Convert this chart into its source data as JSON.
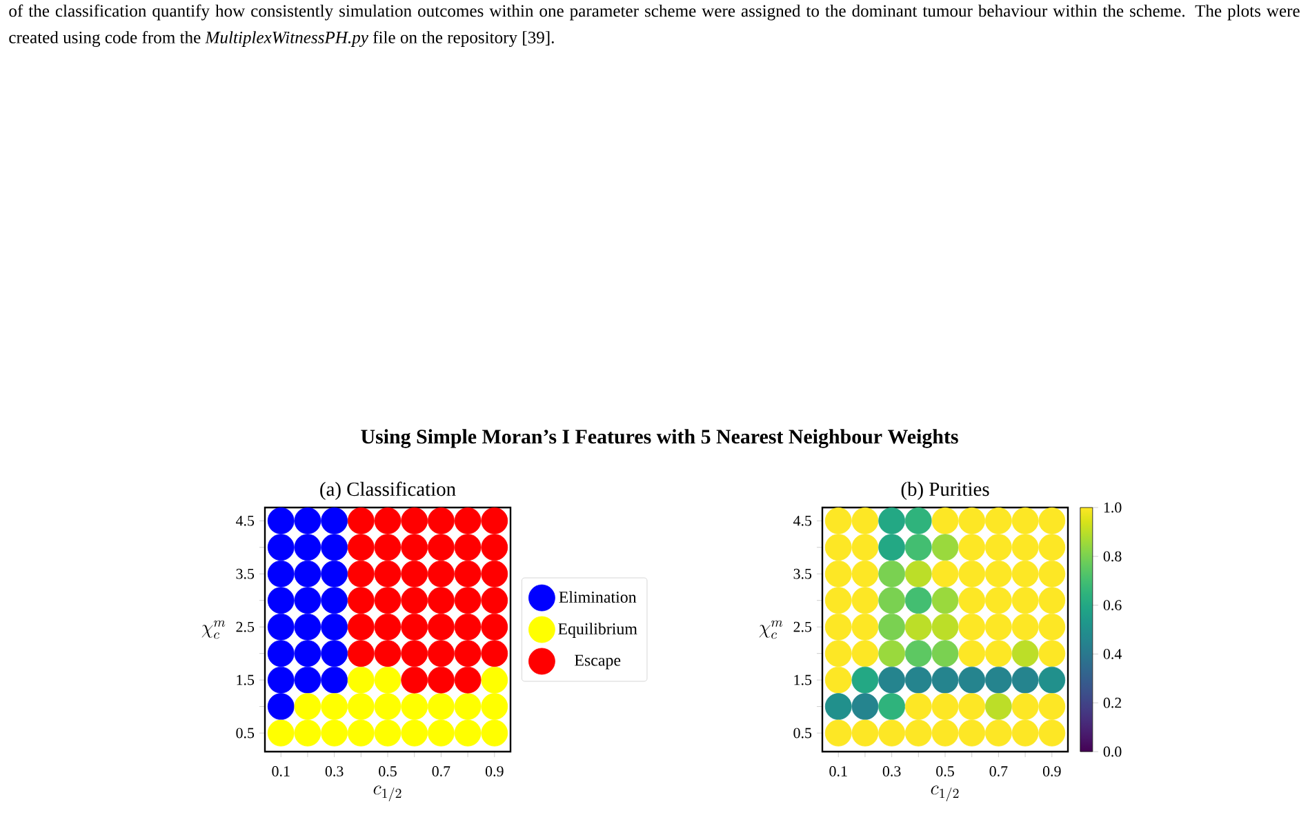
{
  "chart_data": [
    {
      "type": "scatter",
      "title": "(a) Classification",
      "xlabel": "c_{1/2}",
      "ylabel": "\\chi_c^m",
      "annotations": [
        "of the classification quantify how consistently simulation outcomes within one parameter scheme were assigned to the dominant tumour behaviour within the scheme. The plots were created using code from the *MultiplexWitnessPH.py* file on the repository [39].",
        "**Using Simple Moran’s I Features with 5 Nearest Neighbour Weights**"
      ],
      "xlim": [
        0.04,
        0.96
      ],
      "ylim": [
        0.15,
        4.75
      ],
      "xticks": [
        0.1,
        {
          "value": 0.2,
          "label": null
        },
        0.3,
        {
          "value": 0.4,
          "label": null
        },
        0.5,
        {
          "value": 0.6,
          "label": null
        },
        0.7,
        {
          "value": 0.8,
          "label": null
        },
        0.9
      ],
      "yticks": [
        0.5,
        {
          "value": 1.0,
          "label": null
        },
        1.5,
        {
          "value": 2.0,
          "label": null
        },
        2.5,
        {
          "value": 3.0,
          "label": null
        },
        3.5,
        {
          "value": 4.0,
          "label": null
        },
        4.5
      ],
      "marker": "circle",
      "legend": "right",
      "series": [
        {
          "name": "Elimination",
          "color": "#0000ff",
          "x": [
            0.1,
            0.2,
            0.3,
            0.1,
            0.2,
            0.3,
            0.1,
            0.2,
            0.3,
            0.1,
            0.2,
            0.3,
            0.1,
            0.2,
            0.3,
            0.1,
            0.2,
            0.3,
            0.1,
            0.2,
            0.3,
            0.1
          ],
          "values": [
            4.5,
            4.5,
            4.5,
            4.0,
            4.0,
            4.0,
            3.5,
            3.5,
            3.5,
            3.0,
            3.0,
            3.0,
            2.5,
            2.5,
            2.5,
            2.0,
            2.0,
            2.0,
            1.5,
            1.5,
            1.5,
            1.0
          ]
        },
        {
          "name": "Equilibrium",
          "color": "#ffff00",
          "x": [
            0.4,
            0.5,
            0.9,
            0.2,
            0.3,
            0.4,
            0.5,
            0.6,
            0.7,
            0.8,
            0.9,
            0.1,
            0.2,
            0.3,
            0.4,
            0.5,
            0.6,
            0.7,
            0.8,
            0.9
          ],
          "values": [
            1.5,
            1.5,
            1.5,
            1.0,
            1.0,
            1.0,
            1.0,
            1.0,
            1.0,
            1.0,
            1.0,
            0.5,
            0.5,
            0.5,
            0.5,
            0.5,
            0.5,
            0.5,
            0.5,
            0.5
          ]
        },
        {
          "name": "Escape",
          "color": "#ff0000",
          "x": [
            0.4,
            0.5,
            0.6,
            0.7,
            0.8,
            0.9,
            0.4,
            0.5,
            0.6,
            0.7,
            0.8,
            0.9,
            0.4,
            0.5,
            0.6,
            0.7,
            0.8,
            0.9,
            0.4,
            0.5,
            0.6,
            0.7,
            0.8,
            0.9,
            0.4,
            0.5,
            0.6,
            0.7,
            0.8,
            0.9,
            0.4,
            0.5,
            0.6,
            0.7,
            0.8,
            0.9,
            0.6,
            0.7,
            0.8
          ],
          "values": [
            4.5,
            4.5,
            4.5,
            4.5,
            4.5,
            4.5,
            4.0,
            4.0,
            4.0,
            4.0,
            4.0,
            4.0,
            3.5,
            3.5,
            3.5,
            3.5,
            3.5,
            3.5,
            3.0,
            3.0,
            3.0,
            3.0,
            3.0,
            3.0,
            2.5,
            2.5,
            2.5,
            2.5,
            2.5,
            2.5,
            2.0,
            2.0,
            2.0,
            2.0,
            2.0,
            2.0,
            1.5,
            1.5,
            1.5
          ]
        }
      ]
    },
    {
      "type": "scatter",
      "title": "(b) Purities",
      "xlabel": "c_{1/2}",
      "ylabel": "\\chi_c^m",
      "xlim": [
        0.04,
        0.96
      ],
      "ylim": [
        0.15,
        4.75
      ],
      "xticks": [
        0.1,
        {
          "value": 0.2,
          "label": null
        },
        0.3,
        {
          "value": 0.4,
          "label": null
        },
        0.5,
        {
          "value": 0.6,
          "label": null
        },
        0.7,
        {
          "value": 0.8,
          "label": null
        },
        0.9
      ],
      "yticks": [
        0.5,
        {
          "value": 1.0,
          "label": null
        },
        1.5,
        {
          "value": 2.0,
          "label": null
        },
        2.5,
        {
          "value": 3.0,
          "label": null
        },
        3.5,
        {
          "value": 4.0,
          "label": null
        },
        4.5
      ],
      "marker": "circle",
      "clim": [
        0,
        1
      ],
      "cticks": [
        {
          "value": 0,
          "label": "0.0"
        },
        0.2,
        0.4,
        0.6,
        0.8,
        {
          "value": 1,
          "label": "1.0"
        }
      ],
      "x": [
        0.1,
        0.2,
        0.3,
        0.4,
        0.5,
        0.6,
        0.7,
        0.8,
        0.9,
        0.1,
        0.2,
        0.3,
        0.4,
        0.5,
        0.6,
        0.7,
        0.8,
        0.9,
        0.1,
        0.2,
        0.3,
        0.4,
        0.5,
        0.6,
        0.7,
        0.8,
        0.9,
        0.1,
        0.2,
        0.3,
        0.4,
        0.5,
        0.6,
        0.7,
        0.8,
        0.9,
        0.1,
        0.2,
        0.3,
        0.4,
        0.5,
        0.6,
        0.7,
        0.8,
        0.9,
        0.1,
        0.2,
        0.3,
        0.4,
        0.5,
        0.6,
        0.7,
        0.8,
        0.9,
        0.1,
        0.2,
        0.3,
        0.4,
        0.5,
        0.6,
        0.7,
        0.8,
        0.9,
        0.1,
        0.2,
        0.3,
        0.4,
        0.5,
        0.6,
        0.7,
        0.8,
        0.9,
        0.1,
        0.2,
        0.3,
        0.4,
        0.5,
        0.6,
        0.7,
        0.8,
        0.9
      ],
      "values": [
        4.5,
        4.5,
        4.5,
        4.5,
        4.5,
        4.5,
        4.5,
        4.5,
        4.5,
        4.0,
        4.0,
        4.0,
        4.0,
        4.0,
        4.0,
        4.0,
        4.0,
        4.0,
        3.5,
        3.5,
        3.5,
        3.5,
        3.5,
        3.5,
        3.5,
        3.5,
        3.5,
        3.0,
        3.0,
        3.0,
        3.0,
        3.0,
        3.0,
        3.0,
        3.0,
        3.0,
        2.5,
        2.5,
        2.5,
        2.5,
        2.5,
        2.5,
        2.5,
        2.5,
        2.5,
        2.0,
        2.0,
        2.0,
        2.0,
        2.0,
        2.0,
        2.0,
        2.0,
        2.0,
        1.5,
        1.5,
        1.5,
        1.5,
        1.5,
        1.5,
        1.5,
        1.5,
        1.5,
        1.0,
        1.0,
        1.0,
        1.0,
        1.0,
        1.0,
        1.0,
        1.0,
        1.0,
        0.5,
        0.5,
        0.5,
        0.5,
        0.5,
        0.5,
        0.5,
        0.5,
        0.5
      ],
      "cvalues": [
        1,
        1,
        0.6,
        0.65,
        1,
        1,
        1,
        1,
        1,
        1,
        1,
        0.6,
        0.7,
        0.85,
        1,
        1,
        1,
        1,
        1,
        1,
        0.8,
        0.9,
        1,
        1,
        1,
        1,
        1,
        1,
        1,
        0.8,
        0.7,
        0.85,
        1,
        1,
        1,
        1,
        1,
        1,
        0.8,
        0.9,
        0.9,
        1,
        1,
        1,
        1,
        1,
        1,
        0.85,
        0.75,
        0.8,
        1,
        1,
        0.9,
        1,
        1,
        0.6,
        0.45,
        0.45,
        0.45,
        0.45,
        0.45,
        0.45,
        0.5,
        0.5,
        0.45,
        0.65,
        1,
        1,
        1,
        0.9,
        1,
        1,
        1,
        1,
        1,
        1,
        1,
        1,
        1,
        1,
        1
      ]
    }
  ]
}
